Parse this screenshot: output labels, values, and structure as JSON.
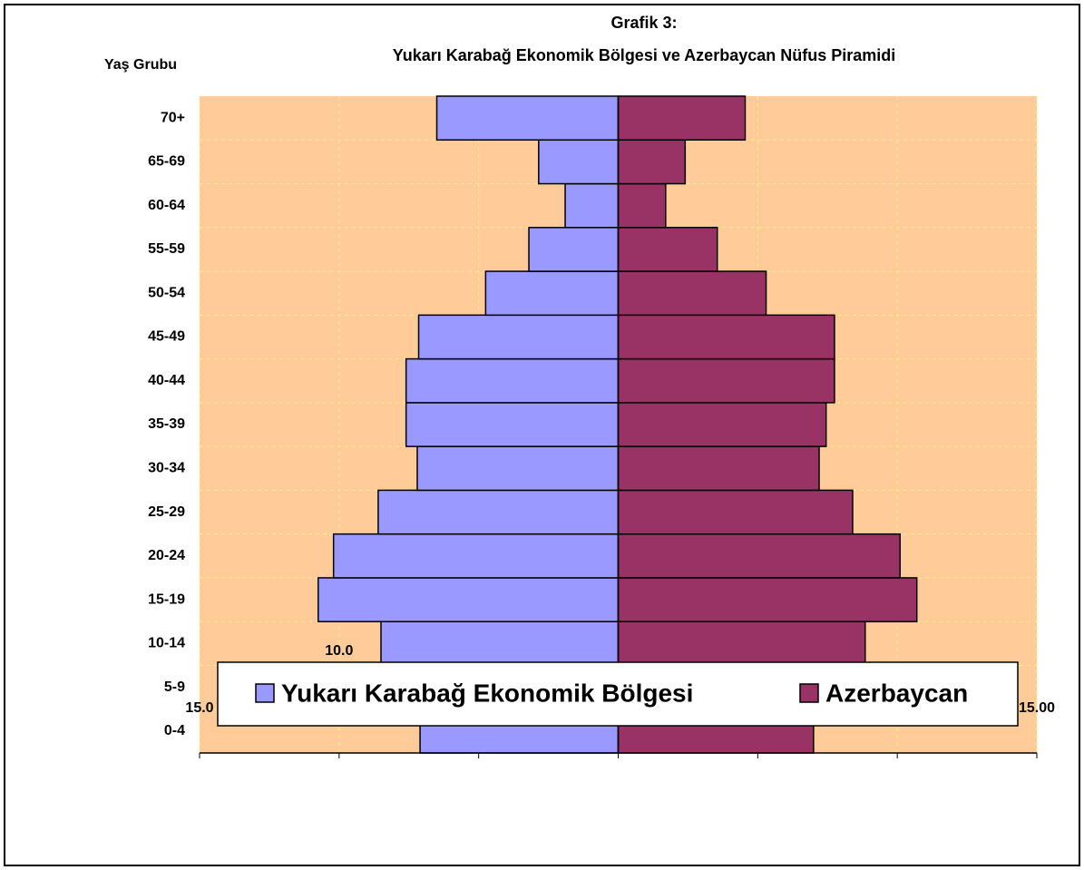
{
  "chart_data": {
    "type": "bar",
    "orientation": "horizontal",
    "title": "Grafik 3:",
    "subtitle": "Yukarı Karabağ Ekonomik Bölgesi ve Azerbaycan Nüfus Piramidi",
    "y_label": "Yaş Grubu",
    "categories": [
      "0-4",
      "5-9",
      "10-14",
      "15-19",
      "20-24",
      "25-29",
      "30-34",
      "35-39",
      "40-44",
      "45-49",
      "50-54",
      "55-59",
      "60-64",
      "65-69",
      "70+"
    ],
    "series": [
      {
        "name": "Yukarı Karabağ Ekonomik Bölgesi",
        "color": "#9999ff",
        "values": [
          -7.1,
          -6.2,
          -8.5,
          -10.75,
          -10.2,
          -8.6,
          -7.2,
          -7.6,
          -7.6,
          -7.15,
          -4.75,
          -3.2,
          -1.9,
          -2.85,
          -6.5
        ]
      },
      {
        "name": "Azerbaycan",
        "color": "#993366",
        "values": [
          7.0,
          6.45,
          8.85,
          10.7,
          10.1,
          8.4,
          7.2,
          7.45,
          7.75,
          7.75,
          5.3,
          3.55,
          1.7,
          2.4,
          4.55
        ]
      }
    ],
    "xlim": [
      -15,
      15
    ],
    "xticks": [
      {
        "value": -15,
        "label": "15.0"
      },
      {
        "value": -10,
        "label": "10.0"
      },
      {
        "value": -5,
        "label": "5.0"
      },
      {
        "value": 0,
        "label": "0.00"
      },
      {
        "value": 5,
        "label": "5.00"
      },
      {
        "value": 10,
        "label": "10.00"
      },
      {
        "value": 15,
        "label": "15.00"
      }
    ],
    "grid": true,
    "background": "#ffcc99",
    "legend": "bottom"
  }
}
